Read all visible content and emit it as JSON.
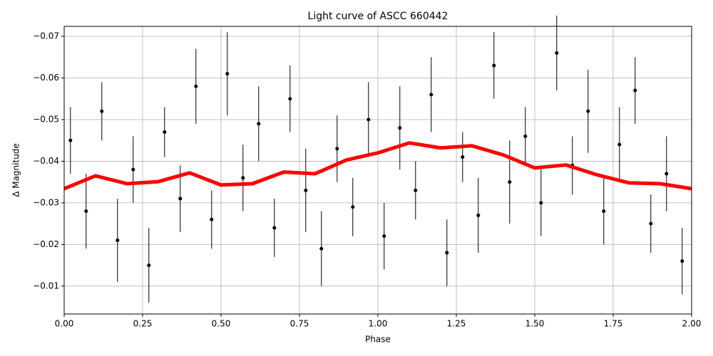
{
  "chart_data": {
    "type": "scatter",
    "title": "Light curve of ASCC 660442",
    "x_label": "Phase",
    "y_label": "Δ Magnitude",
    "xlim": [
      0,
      2
    ],
    "ylim": [
      -0.0033,
      -0.0724
    ],
    "grid": true,
    "xticks": [
      {
        "value": 0,
        "label": "0.00"
      },
      {
        "value": 0.25,
        "label": "0.25"
      },
      {
        "value": 0.5,
        "label": "0.50"
      },
      {
        "value": 0.75,
        "label": "0.75"
      },
      {
        "value": 1,
        "label": "1.00"
      },
      {
        "value": 1.25,
        "label": "1.25"
      },
      {
        "value": 1.5,
        "label": "1.50"
      },
      {
        "value": 1.75,
        "label": "1.75"
      },
      {
        "value": 2,
        "label": "2.00"
      }
    ],
    "yticks": [
      {
        "value": -0.07,
        "label": "−0.07"
      },
      {
        "value": -0.06,
        "label": "−0.06"
      },
      {
        "value": -0.05,
        "label": "−0.05"
      },
      {
        "value": -0.04,
        "label": "−0.04"
      },
      {
        "value": -0.03,
        "label": "−0.03"
      },
      {
        "value": -0.02,
        "label": "−0.02"
      },
      {
        "value": -0.01,
        "label": "−0.01"
      }
    ],
    "series": [
      {
        "style": "errorbar",
        "color": "#000000",
        "x": [
          0.02,
          0.07,
          0.12,
          0.17,
          0.22,
          0.27,
          0.32,
          0.37,
          0.42,
          0.47,
          0.52,
          0.57,
          0.62,
          0.67,
          0.72,
          0.77,
          0.82,
          0.87,
          0.92,
          0.97,
          1.02,
          1.07,
          1.12,
          1.17,
          1.22,
          1.27,
          1.32,
          1.37,
          1.42,
          1.47,
          1.52,
          1.57,
          1.62,
          1.67,
          1.72,
          1.77,
          1.82,
          1.87,
          1.92,
          1.97
        ],
        "values": [
          -0.045,
          -0.028,
          -0.052,
          -0.021,
          -0.038,
          -0.015,
          -0.047,
          -0.031,
          -0.058,
          -0.026,
          -0.061,
          -0.036,
          -0.049,
          -0.024,
          -0.055,
          -0.033,
          -0.019,
          -0.043,
          -0.029,
          -0.05,
          -0.022,
          -0.048,
          -0.033,
          -0.056,
          -0.018,
          -0.041,
          -0.027,
          -0.063,
          -0.035,
          -0.046,
          -0.03,
          -0.066,
          -0.039,
          -0.052,
          -0.028,
          -0.044,
          -0.057,
          -0.025,
          -0.037,
          -0.016
        ],
        "errors": [
          0.008,
          0.009,
          0.007,
          0.01,
          0.008,
          0.009,
          0.006,
          0.008,
          0.009,
          0.007,
          0.01,
          0.008,
          0.009,
          0.007,
          0.008,
          0.01,
          0.009,
          0.008,
          0.007,
          0.009,
          0.008,
          0.01,
          0.007,
          0.009,
          0.008,
          0.006,
          0.009,
          0.008,
          0.01,
          0.007,
          0.008,
          0.009,
          0.007,
          0.01,
          0.008,
          0.009,
          0.008,
          0.007,
          0.009,
          0.008
        ]
      },
      {
        "style": "line",
        "color": "#ff0000",
        "x": [
          0,
          0.1,
          0.2,
          0.3,
          0.4,
          0.5,
          0.6,
          0.7,
          0.8,
          0.9,
          1,
          1.1,
          1.2,
          1.3,
          1.4,
          1.5,
          1.6,
          1.7,
          1.8,
          1.9,
          2
        ],
        "values": [
          -0.0334,
          -0.0365,
          -0.0346,
          -0.0351,
          -0.0372,
          -0.0343,
          -0.0346,
          -0.0374,
          -0.037,
          -0.0403,
          -0.042,
          -0.0444,
          -0.0432,
          -0.0437,
          -0.0415,
          -0.0384,
          -0.0391,
          -0.0367,
          -0.0348,
          -0.0346,
          -0.0334
        ]
      }
    ]
  }
}
